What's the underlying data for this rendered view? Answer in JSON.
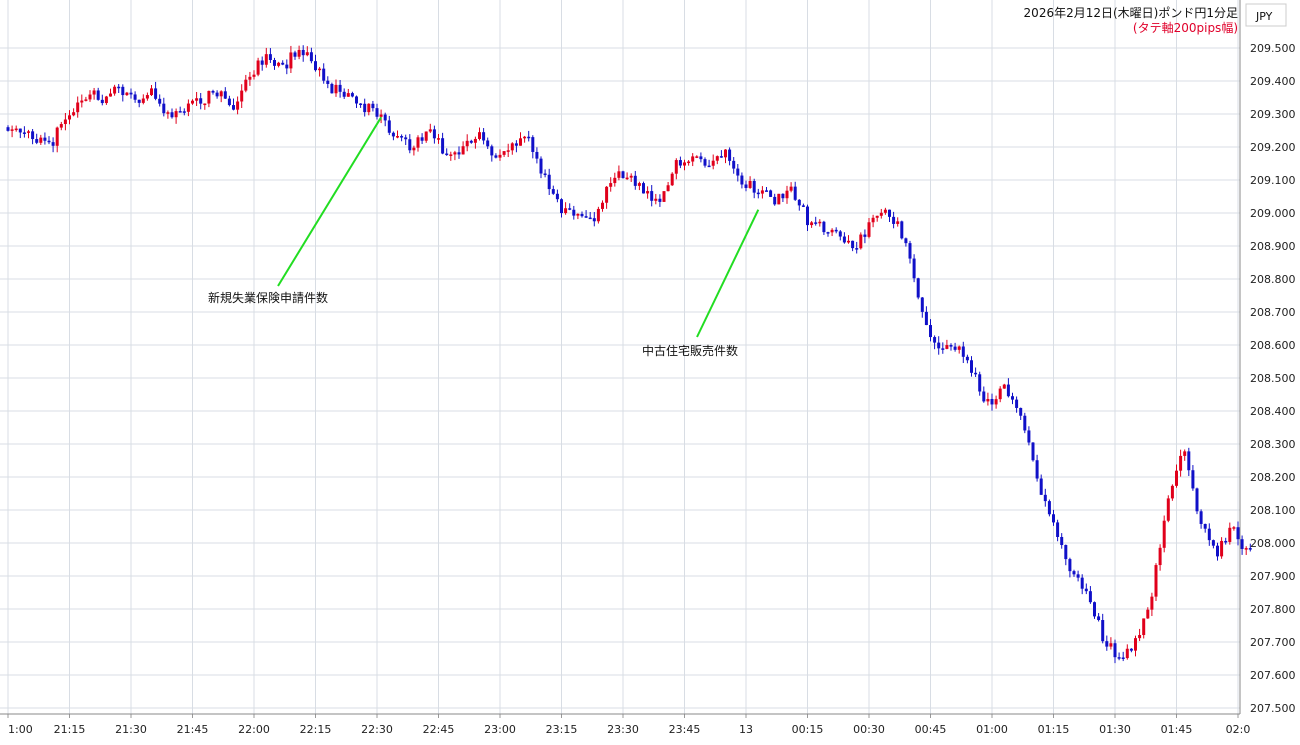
{
  "chart_data": {
    "type": "candlestick",
    "title": "2026年2月12日(木曜日)ポンド円1分足",
    "subtitle": "(タテ軸200pips幅)",
    "currency_label": "JPY",
    "colors": {
      "up": "#e0001b",
      "down": "#1010c8",
      "annotation_line": "#22dd22",
      "grid": "#d8dde4",
      "subtitle": "#e0002a"
    },
    "grid": true,
    "ylim": [
      207.45,
      209.55
    ],
    "y_ticks": [
      "209.500",
      "209.400",
      "209.300",
      "209.200",
      "209.100",
      "209.000",
      "208.900",
      "208.800",
      "208.700",
      "208.600",
      "208.500",
      "208.400",
      "208.300",
      "208.200",
      "208.100",
      "208.000",
      "207.900",
      "207.800",
      "207.700",
      "207.600",
      "207.500"
    ],
    "x_ticks": [
      "1:00",
      "21:15",
      "21:30",
      "21:45",
      "22:00",
      "22:15",
      "22:30",
      "22:45",
      "23:00",
      "23:15",
      "23:30",
      "23:45",
      "13",
      "00:15",
      "00:30",
      "00:45",
      "01:00",
      "01:15",
      "01:30",
      "01:45",
      "02:0"
    ],
    "x_tick_minutes": [
      0,
      15,
      30,
      45,
      60,
      75,
      90,
      105,
      120,
      135,
      150,
      165,
      180,
      195,
      210,
      225,
      240,
      255,
      270,
      285,
      300
    ],
    "candle_count": 304,
    "anchors": [
      [
        0,
        209.26
      ],
      [
        4,
        209.25
      ],
      [
        8,
        209.21
      ],
      [
        12,
        209.22
      ],
      [
        16,
        209.31
      ],
      [
        20,
        209.36
      ],
      [
        24,
        209.35
      ],
      [
        28,
        209.38
      ],
      [
        32,
        209.34
      ],
      [
        36,
        209.38
      ],
      [
        40,
        209.29
      ],
      [
        44,
        209.32
      ],
      [
        48,
        209.34
      ],
      [
        52,
        209.37
      ],
      [
        56,
        209.33
      ],
      [
        60,
        209.42
      ],
      [
        64,
        209.47
      ],
      [
        68,
        209.44
      ],
      [
        72,
        209.5
      ],
      [
        76,
        209.45
      ],
      [
        80,
        209.38
      ],
      [
        84,
        209.36
      ],
      [
        88,
        209.32
      ],
      [
        92,
        209.3
      ],
      [
        96,
        209.22
      ],
      [
        100,
        209.2
      ],
      [
        104,
        209.26
      ],
      [
        108,
        209.17
      ],
      [
        112,
        209.19
      ],
      [
        116,
        209.25
      ],
      [
        120,
        209.16
      ],
      [
        124,
        209.2
      ],
      [
        128,
        209.22
      ],
      [
        132,
        209.1
      ],
      [
        136,
        209.0
      ],
      [
        140,
        209.0
      ],
      [
        144,
        208.97
      ],
      [
        148,
        209.1
      ],
      [
        152,
        209.12
      ],
      [
        156,
        209.06
      ],
      [
        160,
        209.02
      ],
      [
        164,
        209.15
      ],
      [
        168,
        209.18
      ],
      [
        172,
        209.14
      ],
      [
        176,
        209.2
      ],
      [
        180,
        209.1
      ],
      [
        184,
        209.07
      ],
      [
        188,
        209.04
      ],
      [
        192,
        209.08
      ],
      [
        196,
        208.98
      ],
      [
        200,
        208.95
      ],
      [
        204,
        208.92
      ],
      [
        208,
        208.9
      ],
      [
        212,
        208.98
      ],
      [
        216,
        209.0
      ],
      [
        220,
        208.92
      ],
      [
        224,
        208.7
      ],
      [
        228,
        208.58
      ],
      [
        232,
        208.6
      ],
      [
        236,
        208.52
      ],
      [
        240,
        208.42
      ],
      [
        244,
        208.48
      ],
      [
        248,
        208.38
      ],
      [
        252,
        208.2
      ],
      [
        256,
        208.05
      ],
      [
        260,
        207.92
      ],
      [
        264,
        207.85
      ],
      [
        268,
        207.72
      ],
      [
        272,
        207.65
      ],
      [
        276,
        207.7
      ],
      [
        280,
        207.85
      ],
      [
        284,
        208.15
      ],
      [
        288,
        208.28
      ],
      [
        292,
        208.05
      ],
      [
        296,
        207.97
      ],
      [
        300,
        208.05
      ],
      [
        303,
        207.97
      ]
    ],
    "annotations": [
      {
        "label": "新規失業保険申請件数",
        "at_minute": 91,
        "price": 209.29
      },
      {
        "label": "中古住宅販売件数",
        "at_minute": 183,
        "price": 209.01
      }
    ]
  }
}
